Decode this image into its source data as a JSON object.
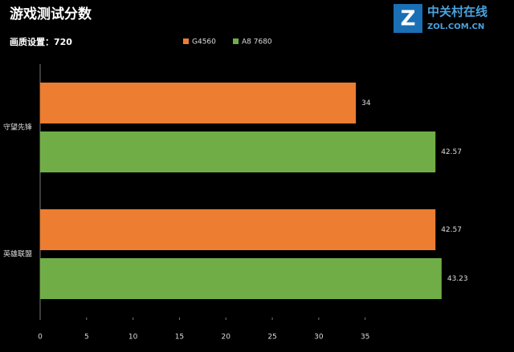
{
  "chart_data": {
    "type": "hbar",
    "title": "游戏测试分数",
    "subtitle": "画质设置：720",
    "watermark": "中关村在线",
    "watermark_url": "ZOL.COM.CN",
    "categories": [
      "守望先锋",
      "英雄联盟"
    ],
    "series": [
      {
        "name": "G4560",
        "color": "#ed7d31",
        "values": [
          34,
          42.57
        ]
      },
      {
        "name": "A8 7680",
        "color": "#70ad47",
        "values": [
          42.57,
          43.23
        ]
      }
    ],
    "xlim": [
      0,
      48
    ],
    "xticks": [
      0,
      5,
      10,
      15,
      20,
      25,
      30,
      35
    ],
    "legend": "top"
  }
}
